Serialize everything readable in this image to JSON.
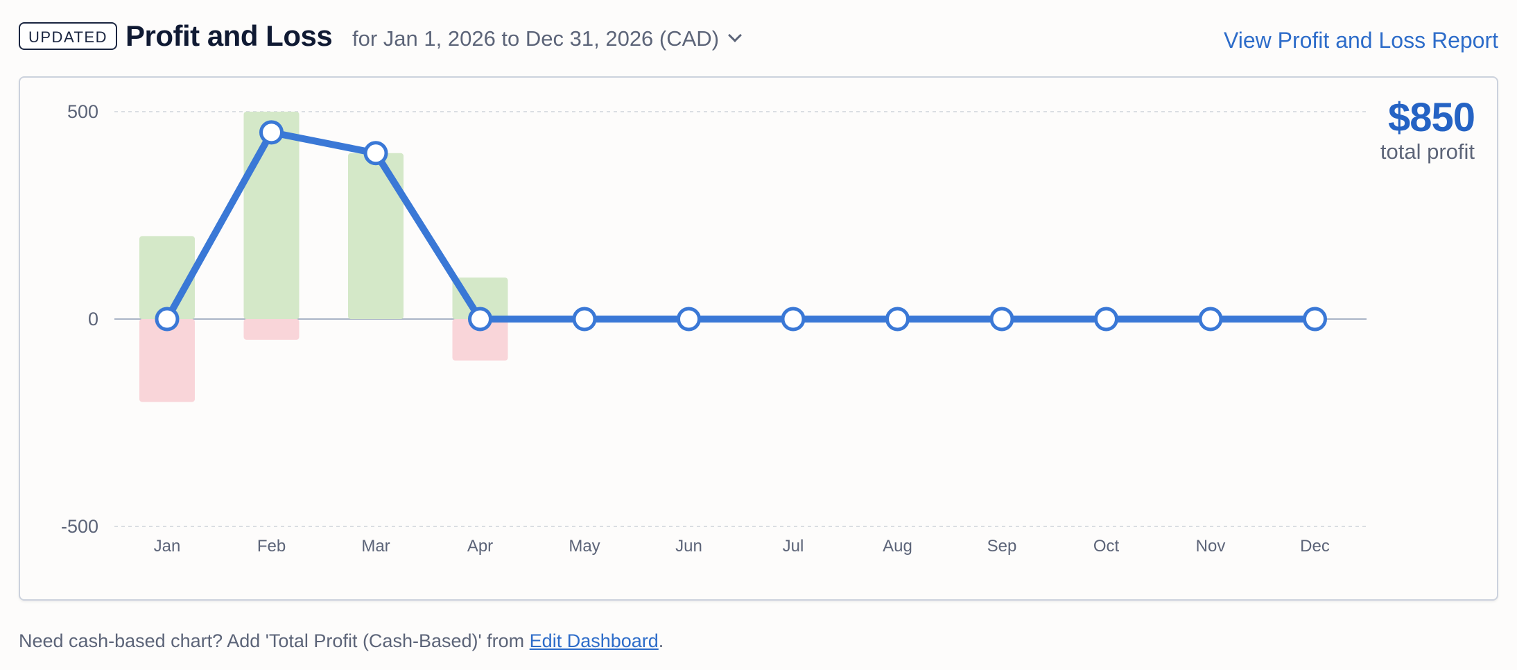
{
  "header": {
    "badge": "UPDATED",
    "title": "Profit and Loss",
    "period": "for Jan 1, 2026 to Dec 31, 2026 (CAD)",
    "report_link": "View Profit and Loss Report"
  },
  "summary": {
    "total_value": "$850",
    "total_label": "total profit"
  },
  "footer": {
    "text_before": "Need cash-based chart? Add 'Total Profit (Cash-Based)' from ",
    "link": "Edit Dashboard",
    "text_after": "."
  },
  "colors": {
    "income": "#d4e8c8",
    "expenses": "#f9d5d9",
    "profit_line": "#3a78d6",
    "accent": "#2563c4"
  },
  "chart_data": {
    "type": "bar",
    "categories": [
      "Jan",
      "Feb",
      "Mar",
      "Apr",
      "May",
      "Jun",
      "Jul",
      "Aug",
      "Sep",
      "Oct",
      "Nov",
      "Dec"
    ],
    "series": [
      {
        "type": "bar",
        "values": [
          200,
          500,
          400,
          100,
          0,
          0,
          0,
          0,
          0,
          0,
          0,
          0
        ]
      },
      {
        "type": "bar",
        "values": [
          -200,
          -50,
          0,
          -100,
          0,
          0,
          0,
          0,
          0,
          0,
          0,
          0
        ]
      },
      {
        "type": "line",
        "values": [
          0,
          450,
          400,
          0,
          0,
          0,
          0,
          0,
          0,
          0,
          0,
          0
        ]
      }
    ],
    "yticks": [
      500,
      0,
      -500
    ],
    "ylim": [
      -500,
      500
    ],
    "grid": true,
    "title": "",
    "xlabel": "",
    "ylabel": ""
  }
}
